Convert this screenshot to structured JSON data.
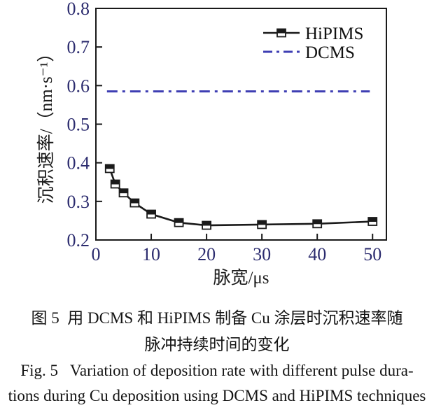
{
  "figure": {
    "caption": {
      "zh_line1": "图 5  用 DCMS 和 HiPIMS 制备 Cu 涂层时沉积速率随",
      "zh_line2": "脉冲持续时间的变化",
      "en_line1": "Fig. 5   Variation of deposition rate with different pulse dura-",
      "en_line2": "tions during Cu deposition using DCMS and HiPIMS techniques"
    }
  },
  "chart_data": {
    "type": "line",
    "title": "",
    "xlabel": "脉宽/μs",
    "ylabel": "沉积速率/（nm·s⁻¹）",
    "xlim": [
      0,
      52.5
    ],
    "ylim": [
      0.2,
      0.8
    ],
    "x_ticks": [
      0,
      10,
      20,
      30,
      40,
      50
    ],
    "y_ticks": [
      0.2,
      0.3,
      0.4,
      0.5,
      0.6,
      0.7,
      0.8
    ],
    "grid": false,
    "legend_position": "top-right-inside",
    "series": [
      {
        "name": "HiPIMS",
        "style": "solid",
        "marker": "half-filled-square",
        "color": "#1a1a1a",
        "x": [
          2.5,
          3.5,
          5,
          7,
          10,
          15,
          20,
          30,
          40,
          50
        ],
        "y": [
          0.385,
          0.345,
          0.322,
          0.296,
          0.267,
          0.245,
          0.238,
          0.24,
          0.242,
          0.248
        ]
      },
      {
        "name": "DCMS",
        "style": "dash-dot",
        "marker": "none",
        "color": "#3e3eb3",
        "x": [
          2,
          49.5
        ],
        "y": [
          0.585,
          0.585
        ]
      }
    ],
    "colors": {
      "axis": "#1a1a1a",
      "tick_label": "#2b2b6e",
      "axis_label": "#1a1a1a",
      "legend_text": "#111111"
    }
  }
}
